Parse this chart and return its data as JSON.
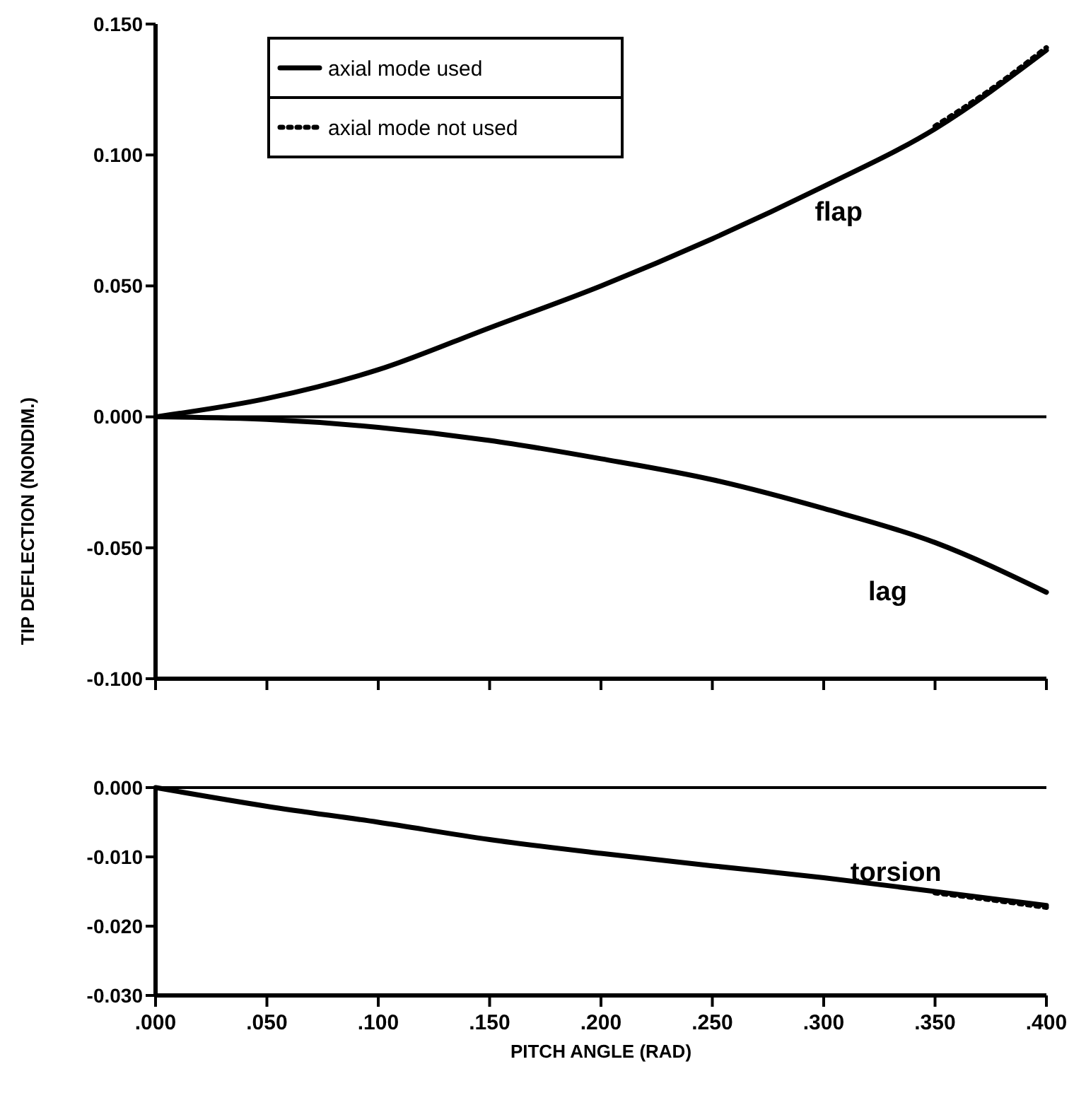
{
  "chart_data": [
    {
      "type": "line",
      "ylabel": "TIP DEFLECTION (NONDIM.)",
      "x": [
        0,
        0.05,
        0.1,
        0.15,
        0.2,
        0.25,
        0.3,
        0.35,
        0.4
      ],
      "xlim": [
        0,
        0.4
      ],
      "xticks": [
        {
          "value": 0,
          "label": null
        },
        {
          "value": 0.05,
          "label": null
        },
        {
          "value": 0.1,
          "label": null
        },
        {
          "value": 0.15,
          "label": null
        },
        {
          "value": 0.2,
          "label": null
        },
        {
          "value": 0.25,
          "label": null
        },
        {
          "value": 0.3,
          "label": null
        },
        {
          "value": 0.35,
          "label": null
        },
        {
          "value": 0.4,
          "label": null
        }
      ],
      "ylim": [
        -0.1,
        0.15
      ],
      "yticks": [
        {
          "value": -0.1,
          "label": "-0.100"
        },
        {
          "value": -0.05,
          "label": "-0.050"
        },
        {
          "value": 0,
          "label": "0.000"
        },
        {
          "value": 0.05,
          "label": "0.050"
        },
        {
          "value": 0.1,
          "label": "0.100"
        },
        {
          "value": 0.15,
          "label": "0.150"
        }
      ],
      "tick_labels": "y",
      "legend": "top left",
      "grid": false,
      "ref_lines": [
        {
          "axis": "y",
          "value": 0,
          "color": "#000000"
        }
      ],
      "annotations": [
        "flap",
        "lag"
      ],
      "series": [
        {
          "name": "axial mode used",
          "color": "#000000",
          "line_style": "solid",
          "values": [
            0,
            0.007,
            0.018,
            0.034,
            0.05,
            0.068,
            0.088,
            0.11,
            0.14
          ]
        },
        {
          "color": "#000000",
          "line_style": "solid",
          "values": [
            0,
            -0.001,
            -0.004,
            -0.009,
            -0.016,
            -0.024,
            -0.035,
            -0.048,
            -0.067
          ]
        },
        {
          "name": "axial mode not used",
          "color": "#000000",
          "line_style": "dotted",
          "x": [
            0.35,
            0.375,
            0.4
          ],
          "values": [
            0.111,
            0.125,
            0.141
          ]
        }
      ]
    },
    {
      "type": "line",
      "xlabel": "PITCH ANGLE (RAD)",
      "x": [
        0,
        0.05,
        0.1,
        0.15,
        0.2,
        0.25,
        0.3,
        0.35,
        0.4
      ],
      "xlim": [
        0,
        0.4
      ],
      "xticks": [
        {
          "value": 0,
          "label": ".000"
        },
        {
          "value": 0.05,
          "label": ".050"
        },
        {
          "value": 0.1,
          "label": ".100"
        },
        {
          "value": 0.15,
          "label": ".150"
        },
        {
          "value": 0.2,
          "label": ".200"
        },
        {
          "value": 0.25,
          "label": ".250"
        },
        {
          "value": 0.3,
          "label": ".300"
        },
        {
          "value": 0.35,
          "label": ".350"
        },
        {
          "value": 0.4,
          "label": ".400"
        }
      ],
      "ylim": [
        -0.03,
        0
      ],
      "yticks": [
        {
          "value": -0.03,
          "label": "-0.030"
        },
        {
          "value": -0.02,
          "label": "-0.020"
        },
        {
          "value": -0.01,
          "label": "-0.010"
        },
        {
          "value": 0,
          "label": "0.000"
        }
      ],
      "grid": false,
      "ref_lines": [
        {
          "axis": "y",
          "value": 0,
          "color": "#000000"
        }
      ],
      "annotations": [
        "torsion"
      ],
      "series": [
        {
          "color": "#000000",
          "line_style": "solid",
          "values": [
            0,
            -0.0027,
            -0.005,
            -0.0075,
            -0.0095,
            -0.0113,
            -0.013,
            -0.015,
            -0.017
          ]
        },
        {
          "color": "#000000",
          "line_style": "dotted",
          "x": [
            0.35,
            0.375,
            0.4
          ],
          "values": [
            -0.0152,
            -0.0162,
            -0.0173
          ]
        }
      ]
    }
  ]
}
